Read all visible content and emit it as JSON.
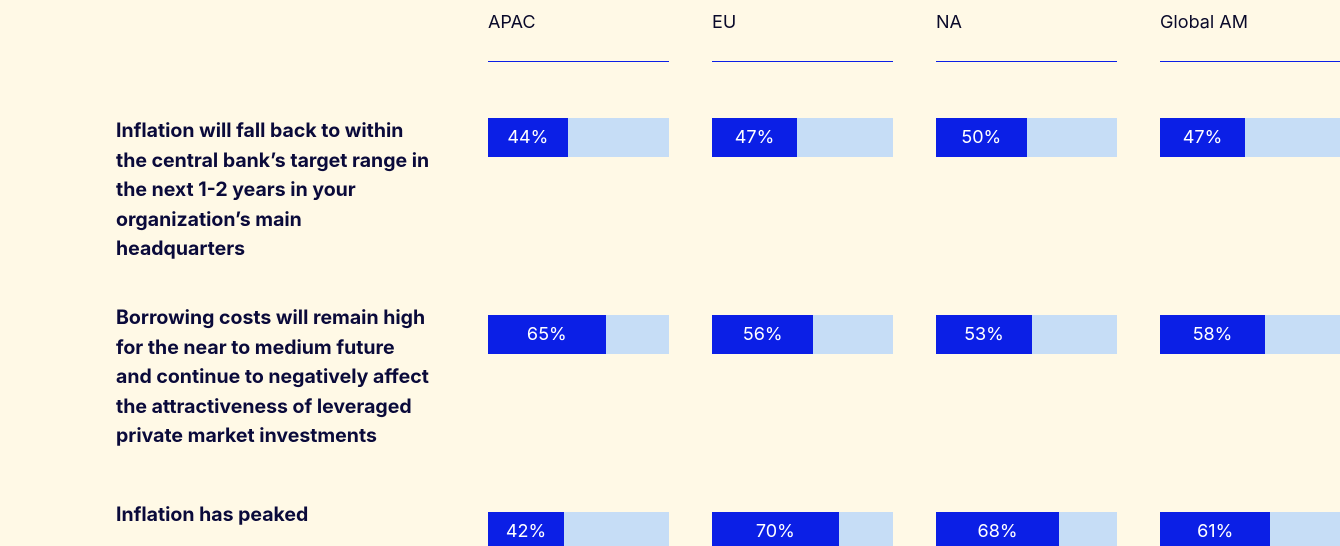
{
  "chart_data": {
    "type": "bar",
    "orientation": "horizontal",
    "categories": [
      "Inflation will fall back to within the central bank’s target range in the next 1-2 years in your organization’s main headquarters",
      "Borrowing costs will remain high for the near to medium future and continue to negatively affect the attractiveness of leveraged private market investments",
      "Inflation has peaked"
    ],
    "xlim": [
      0,
      100
    ],
    "color": "#0b1fe6",
    "track_color": "#c6ddf6",
    "series": [
      {
        "name": "APAC",
        "values": [
          44,
          65,
          42
        ],
        "value_labels": [
          "44%",
          "65%",
          "42%"
        ]
      },
      {
        "name": "EU",
        "values": [
          47,
          56,
          70
        ],
        "value_labels": [
          "47%",
          "56%",
          "70%"
        ]
      },
      {
        "name": "NA",
        "values": [
          50,
          53,
          68
        ],
        "value_labels": [
          "50%",
          "53%",
          "68%"
        ]
      },
      {
        "name": "Global AM",
        "values": [
          47,
          58,
          61
        ],
        "value_labels": [
          "47%",
          "58%",
          "61%"
        ]
      }
    ]
  }
}
